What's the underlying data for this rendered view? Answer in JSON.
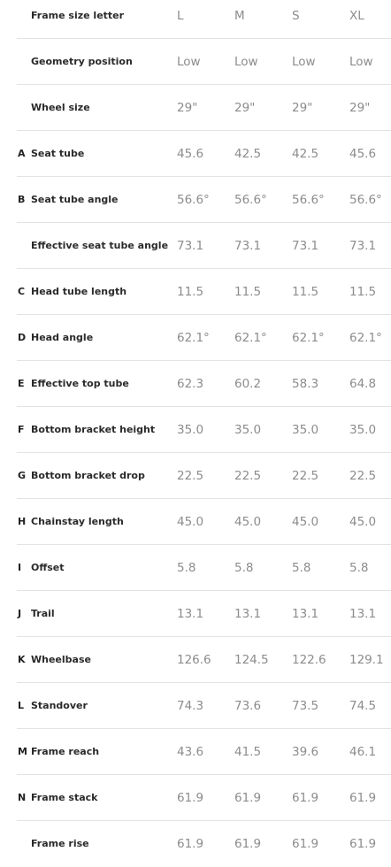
{
  "rows": [
    {
      "letter": "",
      "label": "Frame size letter",
      "values": [
        "L",
        "M",
        "S",
        "XL"
      ]
    },
    {
      "letter": "",
      "label": "Geometry position",
      "values": [
        "Low",
        "Low",
        "Low",
        "Low"
      ]
    },
    {
      "letter": "",
      "label": "Wheel size",
      "values": [
        "29\"",
        "29\"",
        "29\"",
        "29\""
      ]
    },
    {
      "letter": "A",
      "label": "Seat tube",
      "values": [
        "45.6",
        "42.5",
        "42.5",
        "45.6"
      ]
    },
    {
      "letter": "B",
      "label": "Seat tube angle",
      "values": [
        "56.6°",
        "56.6°",
        "56.6°",
        "56.6°"
      ]
    },
    {
      "letter": "",
      "label": "Effective seat tube angle",
      "values": [
        "73.1",
        "73.1",
        "73.1",
        "73.1"
      ]
    },
    {
      "letter": "C",
      "label": "Head tube length",
      "values": [
        "11.5",
        "11.5",
        "11.5",
        "11.5"
      ]
    },
    {
      "letter": "D",
      "label": "Head angle",
      "values": [
        "62.1°",
        "62.1°",
        "62.1°",
        "62.1°"
      ]
    },
    {
      "letter": "E",
      "label": "Effective top tube",
      "values": [
        "62.3",
        "60.2",
        "58.3",
        "64.8"
      ]
    },
    {
      "letter": "F",
      "label": "Bottom bracket height",
      "values": [
        "35.0",
        "35.0",
        "35.0",
        "35.0"
      ]
    },
    {
      "letter": "G",
      "label": "Bottom bracket drop",
      "values": [
        "22.5",
        "22.5",
        "22.5",
        "22.5"
      ]
    },
    {
      "letter": "H",
      "label": "Chainstay length",
      "values": [
        "45.0",
        "45.0",
        "45.0",
        "45.0"
      ]
    },
    {
      "letter": "I",
      "label": "Offset",
      "values": [
        "5.8",
        "5.8",
        "5.8",
        "5.8"
      ]
    },
    {
      "letter": "J",
      "label": "Trail",
      "values": [
        "13.1",
        "13.1",
        "13.1",
        "13.1"
      ]
    },
    {
      "letter": "K",
      "label": "Wheelbase",
      "values": [
        "126.6",
        "124.5",
        "122.6",
        "129.1"
      ]
    },
    {
      "letter": "L",
      "label": "Standover",
      "values": [
        "74.3",
        "73.6",
        "73.5",
        "74.5"
      ]
    },
    {
      "letter": "M",
      "label": "Frame reach",
      "values": [
        "43.6",
        "41.5",
        "39.6",
        "46.1"
      ]
    },
    {
      "letter": "N",
      "label": "Frame stack",
      "values": [
        "61.9",
        "61.9",
        "61.9",
        "61.9"
      ]
    },
    {
      "letter": "",
      "label": "Frame rise",
      "values": [
        "61.9",
        "61.9",
        "61.9",
        "61.9"
      ]
    }
  ]
}
